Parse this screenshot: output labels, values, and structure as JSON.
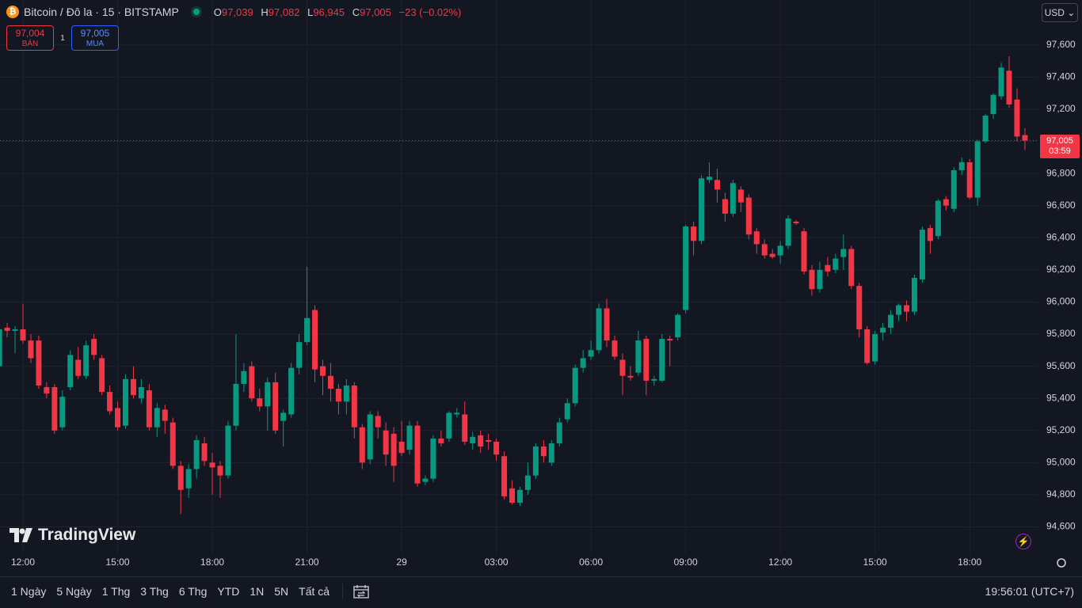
{
  "header": {
    "symbol": "Bitcoin / Đô la · 15 · BITSTAMP",
    "open_label": "O",
    "open": "97,039",
    "high_label": "H",
    "high": "97,082",
    "low_label": "L",
    "low": "96,945",
    "close_label": "C",
    "close": "97,005",
    "change": "−23 (−0.02%)"
  },
  "trade": {
    "sell_price": "97,004",
    "sell_label": "BÁN",
    "spread": "1",
    "buy_price": "97,005",
    "buy_label": "MUA"
  },
  "currency": "USD",
  "price_badge": {
    "price": "97,005",
    "countdown": "03:59"
  },
  "logo": "TradingView",
  "toolbar": {
    "ranges": [
      "1 Ngày",
      "5 Ngày",
      "1 Thg",
      "3 Thg",
      "6 Thg",
      "YTD",
      "1N",
      "5N",
      "Tất cả"
    ],
    "clock": "19:56:01 (UTC+7)"
  },
  "chart_data": {
    "type": "candlestick",
    "up_color": "#089981",
    "down_color": "#f23645",
    "grid": true,
    "ylim": [
      94430,
      97880
    ],
    "yticks": [
      {
        "value": 94600,
        "label": "94,600"
      },
      {
        "value": 94800,
        "label": "94,800"
      },
      {
        "value": 95000,
        "label": "95,000"
      },
      {
        "value": 95200,
        "label": "95,200"
      },
      {
        "value": 95400,
        "label": "95,400"
      },
      {
        "value": 95600,
        "label": "95,600"
      },
      {
        "value": 95800,
        "label": "95,800"
      },
      {
        "value": 96000,
        "label": "96,000"
      },
      {
        "value": 96200,
        "label": "96,200"
      },
      {
        "value": 96400,
        "label": "96,400"
      },
      {
        "value": 96600,
        "label": "96,600"
      },
      {
        "value": 96800,
        "label": "96,800"
      },
      {
        "value": 97000,
        "label": "97,000"
      },
      {
        "value": 97200,
        "label": "97,200"
      },
      {
        "value": 97400,
        "label": "97,400"
      },
      {
        "value": 97600,
        "label": "97,600"
      }
    ],
    "xticks": [
      {
        "value": 3,
        "label": "12:00"
      },
      {
        "value": 15,
        "label": "15:00"
      },
      {
        "value": 27,
        "label": "18:00"
      },
      {
        "value": 39,
        "label": "21:00"
      },
      {
        "value": 51,
        "label": "29"
      },
      {
        "value": 63,
        "label": "03:00"
      },
      {
        "value": 75,
        "label": "06:00"
      },
      {
        "value": 87,
        "label": "09:00"
      },
      {
        "value": 99,
        "label": "12:00"
      },
      {
        "value": 111,
        "label": "15:00"
      },
      {
        "value": 123,
        "label": "18:00"
      }
    ],
    "ohlc": [
      [
        95600,
        95870,
        95550,
        95830
      ],
      [
        95840,
        95870,
        95780,
        95820
      ],
      [
        95820,
        95850,
        95680,
        95830
      ],
      [
        95830,
        95990,
        95740,
        95760
      ],
      [
        95760,
        95800,
        95620,
        95650
      ],
      [
        95760,
        95790,
        95460,
        95480
      ],
      [
        95470,
        95500,
        95400,
        95430
      ],
      [
        95470,
        95490,
        95180,
        95200
      ],
      [
        95220,
        95450,
        95200,
        95410
      ],
      [
        95470,
        95700,
        95450,
        95670
      ],
      [
        95640,
        95720,
        95520,
        95540
      ],
      [
        95540,
        95760,
        95520,
        95730
      ],
      [
        95770,
        95800,
        95640,
        95670
      ],
      [
        95650,
        95670,
        95420,
        95440
      ],
      [
        95440,
        95480,
        95300,
        95320
      ],
      [
        95340,
        95380,
        95200,
        95220
      ],
      [
        95230,
        95550,
        95210,
        95520
      ],
      [
        95520,
        95600,
        95400,
        95420
      ],
      [
        95400,
        95520,
        95370,
        95470
      ],
      [
        95450,
        95490,
        95200,
        95220
      ],
      [
        95220,
        95370,
        95160,
        95340
      ],
      [
        95330,
        95360,
        95180,
        95260
      ],
      [
        95250,
        95280,
        94960,
        94980
      ],
      [
        94980,
        95010,
        94680,
        94830
      ],
      [
        94840,
        94990,
        94780,
        94960
      ],
      [
        94960,
        95170,
        94900,
        95140
      ],
      [
        95120,
        95160,
        94980,
        95010
      ],
      [
        95000,
        95060,
        94800,
        94970
      ],
      [
        94980,
        95010,
        94780,
        94920
      ],
      [
        94920,
        95260,
        94900,
        95230
      ],
      [
        95230,
        95800,
        95200,
        95490
      ],
      [
        95490,
        95620,
        95440,
        95570
      ],
      [
        95600,
        95630,
        95380,
        95400
      ],
      [
        95400,
        95460,
        95320,
        95350
      ],
      [
        95350,
        95530,
        95200,
        95500
      ],
      [
        95500,
        95560,
        95180,
        95200
      ],
      [
        95260,
        95330,
        95100,
        95310
      ],
      [
        95300,
        95620,
        95280,
        95590
      ],
      [
        95590,
        95800,
        95550,
        95750
      ],
      [
        95750,
        96220,
        95730,
        95900
      ],
      [
        95950,
        95980,
        95500,
        95580
      ],
      [
        95600,
        95640,
        95420,
        95540
      ],
      [
        95540,
        95620,
        95380,
        95460
      ],
      [
        95460,
        95490,
        95300,
        95380
      ],
      [
        95380,
        95520,
        95300,
        95480
      ],
      [
        95480,
        95500,
        95150,
        95220
      ],
      [
        95220,
        95240,
        94960,
        95000
      ],
      [
        95020,
        95320,
        94990,
        95300
      ],
      [
        95290,
        95320,
        95150,
        95220
      ],
      [
        95200,
        95250,
        94980,
        95050
      ],
      [
        95180,
        95220,
        94880,
        94980
      ],
      [
        95130,
        95260,
        95040,
        95060
      ],
      [
        95080,
        95260,
        95050,
        95230
      ],
      [
        95230,
        95260,
        94850,
        94870
      ],
      [
        94880,
        94920,
        94860,
        94900
      ],
      [
        94900,
        95170,
        94880,
        95150
      ],
      [
        95150,
        95200,
        95100,
        95120
      ],
      [
        95150,
        95320,
        95130,
        95310
      ],
      [
        95300,
        95340,
        95280,
        95310
      ],
      [
        95300,
        95380,
        95110,
        95130
      ],
      [
        95120,
        95190,
        95080,
        95160
      ],
      [
        95170,
        95200,
        95060,
        95100
      ],
      [
        95140,
        95180,
        95080,
        95130
      ],
      [
        95130,
        95150,
        95010,
        95050
      ],
      [
        95040,
        95070,
        94770,
        94790
      ],
      [
        94840,
        94890,
        94740,
        94750
      ],
      [
        94750,
        94850,
        94730,
        94830
      ],
      [
        94830,
        95000,
        94800,
        94920
      ],
      [
        94920,
        95120,
        94900,
        95100
      ],
      [
        95100,
        95140,
        95000,
        95040
      ],
      [
        95000,
        95140,
        94980,
        95120
      ],
      [
        95120,
        95280,
        95100,
        95250
      ],
      [
        95270,
        95400,
        95250,
        95370
      ],
      [
        95370,
        95610,
        95350,
        95590
      ],
      [
        95590,
        95700,
        95560,
        95650
      ],
      [
        95660,
        95760,
        95640,
        95700
      ],
      [
        95700,
        95990,
        95680,
        95960
      ],
      [
        95960,
        96020,
        95720,
        95760
      ],
      [
        95760,
        95790,
        95640,
        95660
      ],
      [
        95640,
        95680,
        95420,
        95540
      ],
      [
        95540,
        95600,
        95510,
        95530
      ],
      [
        95560,
        95820,
        95540,
        95760
      ],
      [
        95770,
        95790,
        95420,
        95510
      ],
      [
        95510,
        95540,
        95480,
        95520
      ],
      [
        95510,
        95800,
        95500,
        95770
      ],
      [
        95770,
        95790,
        95600,
        95760
      ],
      [
        95780,
        95930,
        95760,
        95920
      ],
      [
        95950,
        96480,
        95930,
        96470
      ],
      [
        96470,
        96500,
        96290,
        96380
      ],
      [
        96380,
        96790,
        96360,
        96770
      ],
      [
        96760,
        96870,
        96740,
        96780
      ],
      [
        96760,
        96830,
        96620,
        96700
      ],
      [
        96640,
        96680,
        96500,
        96550
      ],
      [
        96550,
        96760,
        96530,
        96740
      ],
      [
        96700,
        96720,
        96560,
        96620
      ],
      [
        96650,
        96670,
        96390,
        96420
      ],
      [
        96440,
        96460,
        96300,
        96360
      ],
      [
        96360,
        96390,
        96270,
        96290
      ],
      [
        96300,
        96330,
        96270,
        96280
      ],
      [
        96290,
        96380,
        96240,
        96350
      ],
      [
        96350,
        96540,
        96330,
        96520
      ],
      [
        96500,
        96510,
        96480,
        96490
      ],
      [
        96440,
        96460,
        96170,
        96190
      ],
      [
        96200,
        96230,
        96040,
        96080
      ],
      [
        96080,
        96250,
        96060,
        96200
      ],
      [
        96230,
        96280,
        96160,
        96190
      ],
      [
        96200,
        96300,
        96180,
        96270
      ],
      [
        96280,
        96420,
        96200,
        96330
      ],
      [
        96330,
        96350,
        96080,
        96100
      ],
      [
        96100,
        96120,
        95780,
        95830
      ],
      [
        95830,
        95850,
        95610,
        95620
      ],
      [
        95630,
        95820,
        95610,
        95800
      ],
      [
        95810,
        95870,
        95760,
        95840
      ],
      [
        95840,
        95950,
        95800,
        95920
      ],
      [
        95920,
        95990,
        95880,
        95980
      ],
      [
        95980,
        96010,
        95880,
        95940
      ],
      [
        95940,
        96170,
        95920,
        96150
      ],
      [
        96140,
        96470,
        96120,
        96450
      ],
      [
        96460,
        96480,
        96300,
        96380
      ],
      [
        96410,
        96640,
        96390,
        96630
      ],
      [
        96640,
        96660,
        96570,
        96600
      ],
      [
        96580,
        96840,
        96560,
        96820
      ],
      [
        96820,
        96900,
        96790,
        96870
      ],
      [
        96870,
        96890,
        96640,
        96650
      ],
      [
        96650,
        97010,
        96600,
        97000
      ],
      [
        97000,
        97170,
        96990,
        97160
      ],
      [
        97170,
        97300,
        97140,
        97290
      ],
      [
        97280,
        97490,
        97260,
        97460
      ],
      [
        97440,
        97530,
        97210,
        97230
      ],
      [
        97260,
        97330,
        97000,
        97030
      ],
      [
        97039,
        97082,
        96945,
        97005
      ]
    ]
  }
}
